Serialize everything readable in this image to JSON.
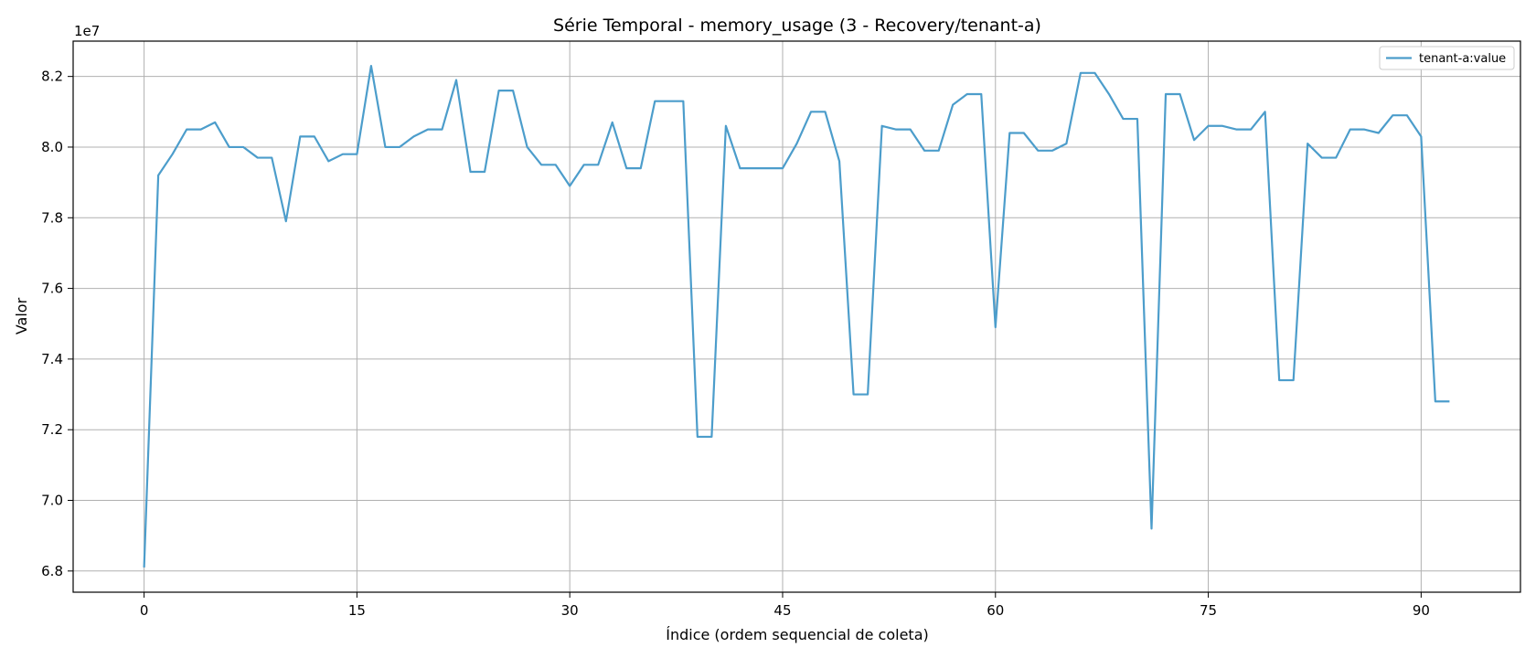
{
  "chart_data": {
    "type": "line",
    "title": "Série Temporal - memory_usage (3 - Recovery/tenant-a)",
    "xlabel": "Índice (ordem sequencial de coleta)",
    "ylabel": "Valor",
    "y_offset_label": "1e7",
    "y_scale_factor": 10000000,
    "xlim": [
      -5,
      97
    ],
    "ylim": [
      6.74,
      8.3
    ],
    "x_ticks": [
      0,
      15,
      30,
      45,
      60,
      75,
      90
    ],
    "y_ticks": [
      6.8,
      7.0,
      7.2,
      7.4,
      7.6,
      7.8,
      8.0,
      8.2
    ],
    "y_tick_labels": [
      "6.8",
      "7.0",
      "7.2",
      "7.4",
      "7.6",
      "7.8",
      "8.0",
      "8.2"
    ],
    "grid": true,
    "legend_position": "top-right",
    "series": [
      {
        "name": "tenant-a:value",
        "color": "#4c9dcb",
        "x": [
          0,
          1,
          2,
          3,
          4,
          5,
          6,
          7,
          8,
          9,
          10,
          11,
          12,
          13,
          14,
          15,
          16,
          17,
          18,
          19,
          20,
          21,
          22,
          23,
          24,
          25,
          26,
          27,
          28,
          29,
          30,
          31,
          32,
          33,
          34,
          35,
          36,
          37,
          38,
          39,
          40,
          41,
          42,
          43,
          44,
          45,
          46,
          47,
          48,
          49,
          50,
          51,
          52,
          53,
          54,
          55,
          56,
          57,
          58,
          59,
          60,
          61,
          62,
          63,
          64,
          65,
          66,
          67,
          68,
          69,
          70,
          71,
          72,
          73,
          74,
          75,
          76,
          77,
          78,
          79,
          80,
          81,
          82,
          83,
          84,
          85,
          86,
          87,
          88,
          89,
          90,
          91,
          92
        ],
        "values": [
          6.81,
          7.92,
          7.98,
          8.05,
          8.05,
          8.07,
          8.0,
          8.0,
          7.97,
          7.97,
          7.79,
          8.03,
          8.03,
          7.96,
          7.98,
          7.98,
          8.23,
          8.0,
          8.0,
          8.03,
          8.05,
          8.05,
          8.19,
          7.93,
          7.93,
          8.16,
          8.16,
          8.0,
          7.95,
          7.95,
          7.89,
          7.95,
          7.95,
          8.07,
          7.94,
          7.94,
          8.13,
          8.13,
          8.13,
          7.18,
          7.18,
          8.06,
          7.94,
          7.94,
          7.94,
          7.94,
          8.01,
          8.1,
          8.1,
          7.96,
          7.3,
          7.3,
          8.06,
          8.05,
          8.05,
          7.99,
          7.99,
          8.12,
          8.15,
          8.15,
          7.49,
          8.04,
          8.04,
          7.99,
          7.99,
          8.01,
          8.21,
          8.21,
          8.15,
          8.08,
          8.08,
          6.92,
          8.15,
          8.15,
          8.02,
          8.06,
          8.06,
          8.05,
          8.05,
          8.1,
          7.34,
          7.34,
          8.01,
          7.97,
          7.97,
          8.05,
          8.05,
          8.04,
          8.09,
          8.09,
          8.03,
          7.28,
          7.28
        ]
      }
    ]
  }
}
